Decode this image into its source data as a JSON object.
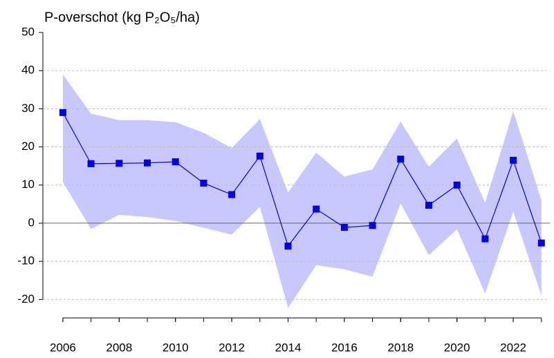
{
  "chart_data": {
    "type": "line",
    "title": "P-overschot (kg P₂O₅/ha)",
    "x": [
      2006,
      2007,
      2008,
      2009,
      2010,
      2011,
      2012,
      2013,
      2014,
      2015,
      2016,
      2017,
      2018,
      2019,
      2020,
      2021,
      2022,
      2023
    ],
    "values": [
      29,
      15.6,
      15.7,
      15.8,
      16.1,
      10.5,
      7.5,
      17.6,
      -6,
      3.7,
      -1.1,
      -0.6,
      16.8,
      4.7,
      10,
      -4.1,
      16.5,
      -5.2
    ],
    "band_upper": [
      39,
      28.7,
      27,
      27,
      26.5,
      23.7,
      19.7,
      27.3,
      8,
      18.5,
      12.2,
      14.1,
      26.6,
      14.8,
      22.2,
      5.3,
      29.4,
      6
    ],
    "band_lower": [
      10.8,
      -1.5,
      2.2,
      1.6,
      0.6,
      -1.2,
      -3,
      4.3,
      -22.2,
      -11,
      -12.1,
      -14,
      5.2,
      -8.4,
      -1.6,
      -18.4,
      3,
      -19
    ],
    "color": "#0000ee",
    "band_color": "#c8c8ff",
    "xlim": [
      2005.29,
      2023.3
    ],
    "xticks": [
      2006,
      2008,
      2010,
      2012,
      2014,
      2016,
      2018,
      2020,
      2022
    ],
    "ylim": [
      -22.3,
      50
    ],
    "yticks": [
      -20,
      -10,
      0,
      10,
      20,
      30,
      40,
      50
    ],
    "grid": true
  }
}
